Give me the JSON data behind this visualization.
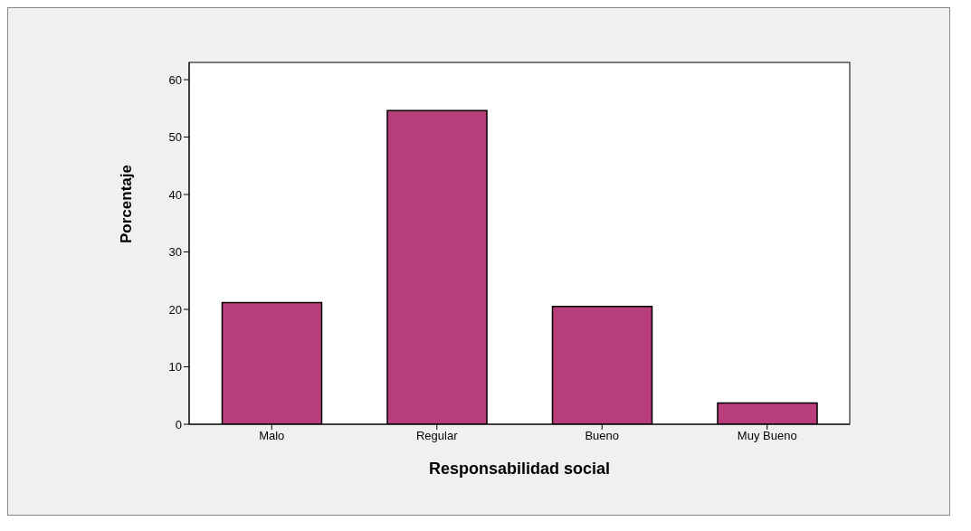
{
  "chart_data": {
    "type": "bar",
    "xlabel": "Responsabilidad social",
    "ylabel": "Porcentaje",
    "categories": [
      "Malo",
      "Regular",
      "Bueno",
      "Muy Bueno"
    ],
    "values": [
      21.2,
      54.6,
      20.5,
      3.7
    ],
    "color": "#b83d7b",
    "ylim": [
      0,
      63
    ],
    "yticks": [
      0,
      10,
      20,
      30,
      40,
      50,
      60
    ],
    "grid": false,
    "legend": false
  }
}
